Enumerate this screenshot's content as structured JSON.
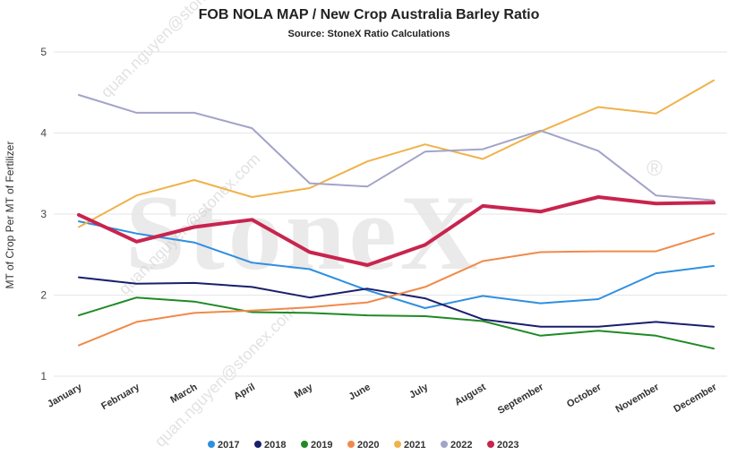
{
  "chart_data": {
    "type": "line",
    "title": "FOB NOLA MAP / New Crop Australia Barley Ratio",
    "subtitle": "Source: StoneX Ratio Calculations",
    "xlabel": "",
    "ylabel": "MT of Crop Per MT of Fertilizer",
    "ylim": [
      1,
      5
    ],
    "yticks": [
      1,
      2,
      3,
      4,
      5
    ],
    "grid": true,
    "legend_position": "bottom",
    "categories": [
      "January",
      "February",
      "March",
      "April",
      "May",
      "June",
      "July",
      "August",
      "September",
      "October",
      "November",
      "December"
    ],
    "series": [
      {
        "name": "2017",
        "color": "#2f8fe0",
        "values": [
          2.91,
          2.76,
          2.65,
          2.4,
          2.32,
          2.06,
          1.84,
          1.99,
          1.9,
          1.95,
          2.27,
          2.36
        ]
      },
      {
        "name": "2018",
        "color": "#1a1f6e",
        "values": [
          2.22,
          2.14,
          2.15,
          2.1,
          1.97,
          2.08,
          1.96,
          1.7,
          1.61,
          1.61,
          1.67,
          1.61
        ]
      },
      {
        "name": "2019",
        "color": "#1f8a24",
        "values": [
          1.75,
          1.97,
          1.92,
          1.79,
          1.78,
          1.75,
          1.74,
          1.68,
          1.5,
          1.56,
          1.5,
          1.34
        ]
      },
      {
        "name": "2020",
        "color": "#f08a4b",
        "values": [
          1.38,
          1.67,
          1.78,
          1.81,
          1.85,
          1.91,
          2.1,
          2.42,
          2.53,
          2.54,
          2.54,
          2.76
        ]
      },
      {
        "name": "2021",
        "color": "#f0b24a",
        "values": [
          2.84,
          3.23,
          3.42,
          3.21,
          3.32,
          3.65,
          3.86,
          3.68,
          4.02,
          4.32,
          4.24,
          4.65
        ]
      },
      {
        "name": "2022",
        "color": "#a3a3c9",
        "values": [
          4.47,
          4.25,
          4.25,
          4.06,
          3.38,
          3.34,
          3.77,
          3.8,
          4.03,
          3.78,
          3.23,
          3.17
        ]
      },
      {
        "name": "2023",
        "color": "#c8244e",
        "values": [
          2.99,
          2.66,
          2.84,
          2.93,
          2.53,
          2.37,
          2.62,
          3.1,
          3.03,
          3.21,
          3.13,
          3.14
        ]
      }
    ]
  },
  "watermark": {
    "brand": "StoneX",
    "registered": "®",
    "email_text": "quan.nguyen@stonex.com"
  }
}
